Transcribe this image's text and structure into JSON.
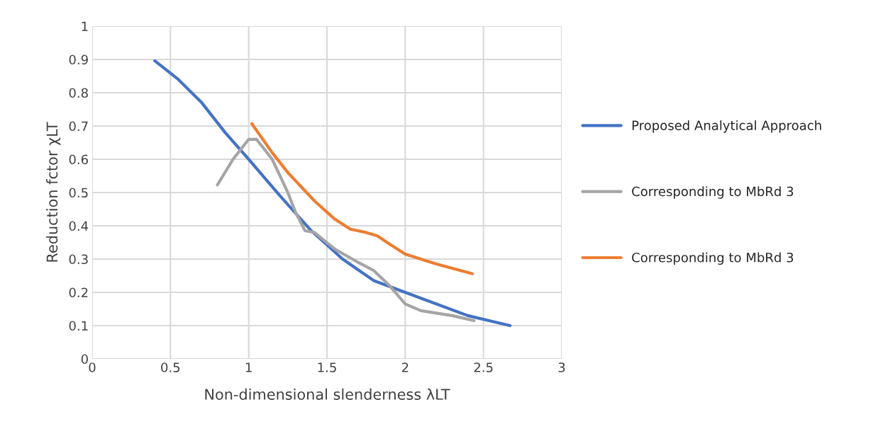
{
  "chart_data": {
    "type": "line",
    "xlabel": "Non-dimensional slenderness λLT",
    "ylabel": "Reduction fctor χLT",
    "xlim": [
      0,
      3
    ],
    "xticks": [
      0,
      0.5,
      1,
      1.5,
      2,
      2.5,
      3
    ],
    "ylim": [
      0,
      1
    ],
    "yticks": [
      0,
      0.1,
      0.2,
      0.3,
      0.4,
      0.5,
      0.6,
      0.7,
      0.8,
      0.9,
      1
    ],
    "grid": true,
    "legend": "right",
    "line_style": "solid",
    "marker": "none",
    "series": [
      {
        "name": "Proposed Analytical Approach",
        "color": "#4472c4",
        "x": [
          0.4,
          0.55,
          0.7,
          0.85,
          1.0,
          1.2,
          1.4,
          1.6,
          1.8,
          2.0,
          2.2,
          2.4,
          2.67
        ],
        "values": [
          0.896,
          0.84,
          0.77,
          0.68,
          0.6,
          0.49,
          0.385,
          0.3,
          0.235,
          0.2,
          0.165,
          0.13,
          0.1
        ]
      },
      {
        "name": "Corresponding to MbRd 3",
        "color": "#a5a5a5",
        "x": [
          0.8,
          0.9,
          1.0,
          1.05,
          1.15,
          1.25,
          1.3,
          1.36,
          1.42,
          1.55,
          1.7,
          1.8,
          1.9,
          2.0,
          2.1,
          2.3,
          2.44
        ],
        "values": [
          0.523,
          0.6,
          0.66,
          0.66,
          0.6,
          0.5,
          0.44,
          0.385,
          0.38,
          0.33,
          0.29,
          0.265,
          0.22,
          0.165,
          0.145,
          0.13,
          0.115
        ]
      },
      {
        "name": "Corresponding to MbRd 3",
        "color": "#ed7d31",
        "x": [
          1.02,
          1.15,
          1.25,
          1.35,
          1.42,
          1.55,
          1.65,
          1.75,
          1.82,
          1.9,
          2.0,
          2.2,
          2.43
        ],
        "values": [
          0.707,
          0.62,
          0.56,
          0.51,
          0.475,
          0.42,
          0.39,
          0.38,
          0.37,
          0.345,
          0.315,
          0.285,
          0.256
        ]
      }
    ]
  }
}
